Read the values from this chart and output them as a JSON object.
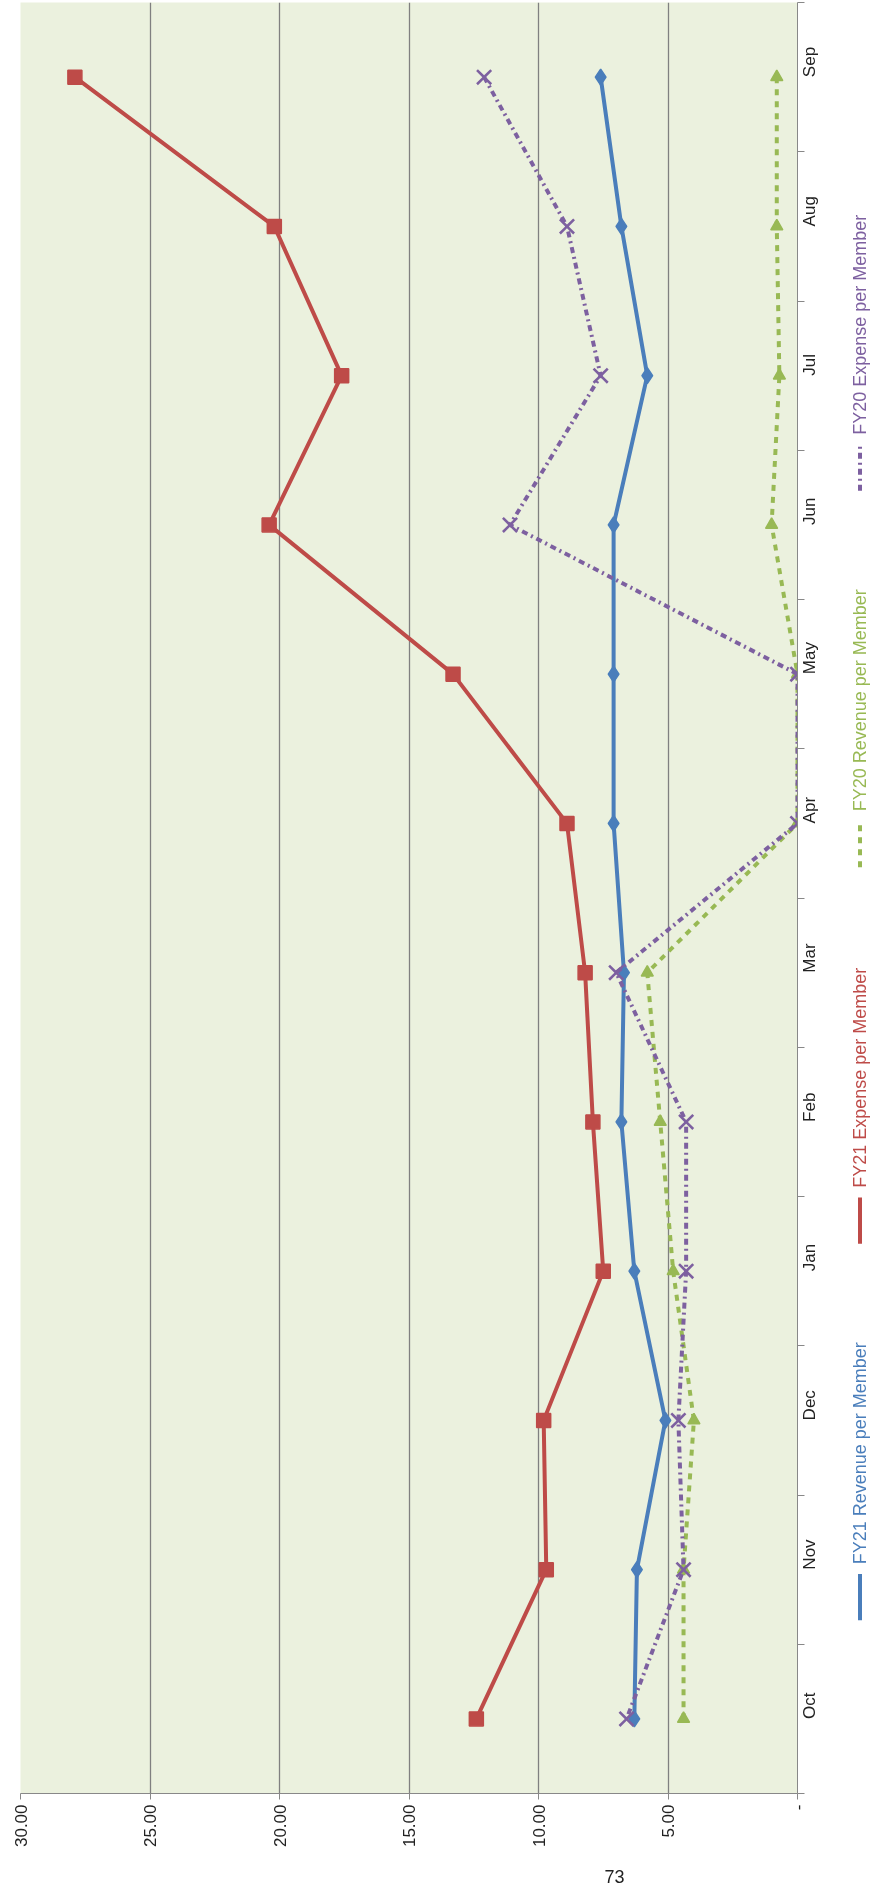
{
  "chart_data": {
    "type": "line",
    "orientation": "horizontal",
    "categories": [
      "Sep",
      "Aug",
      "Jul",
      "Jun",
      "May",
      "Apr",
      "Mar",
      "Feb",
      "Jan",
      "Dec",
      "Nov",
      "Oct"
    ],
    "series": [
      {
        "name": "FY21 Revenue per Member",
        "color": "#4a7ebb",
        "marker": "diamond",
        "line_style": "solid",
        "values": [
          7.6,
          6.8,
          5.8,
          7.1,
          7.1,
          7.1,
          6.7,
          6.8,
          6.3,
          5.1,
          6.2,
          6.3
        ]
      },
      {
        "name": "FY21 Expense per Member",
        "color": "#be4b48",
        "marker": "square",
        "line_style": "solid",
        "values": [
          27.9,
          20.2,
          17.6,
          20.4,
          13.3,
          8.9,
          8.2,
          7.9,
          7.5,
          9.8,
          9.7,
          12.4
        ]
      },
      {
        "name": "FY20 Revenue per Member",
        "color": "#98b954",
        "marker": "triangle",
        "line_style": "dashed",
        "values": [
          0.8,
          0.8,
          0.7,
          1.0,
          0,
          0,
          5.8,
          5.3,
          4.8,
          4.0,
          4.4,
          4.4
        ]
      },
      {
        "name": "FY20 Expense per Member",
        "color": "#7d60a0",
        "marker": "cross",
        "line_style": "dashdot",
        "values": [
          12.1,
          8.9,
          7.6,
          11.1,
          0,
          0,
          7.0,
          4.3,
          4.3,
          4.6,
          4.4,
          6.6
        ]
      }
    ],
    "xlim": [
      30,
      0
    ],
    "xticks": [
      {
        "value": 30,
        "label": "30.00"
      },
      {
        "value": 25,
        "label": "25.00"
      },
      {
        "value": 20,
        "label": "20.00"
      },
      {
        "value": 15,
        "label": "15.00"
      },
      {
        "value": 10,
        "label": "10.00"
      },
      {
        "value": 5,
        "label": "5.00"
      },
      {
        "value": 0,
        "label": "-"
      }
    ],
    "grid": "x",
    "legend": "right",
    "annotations": [
      "73"
    ]
  }
}
